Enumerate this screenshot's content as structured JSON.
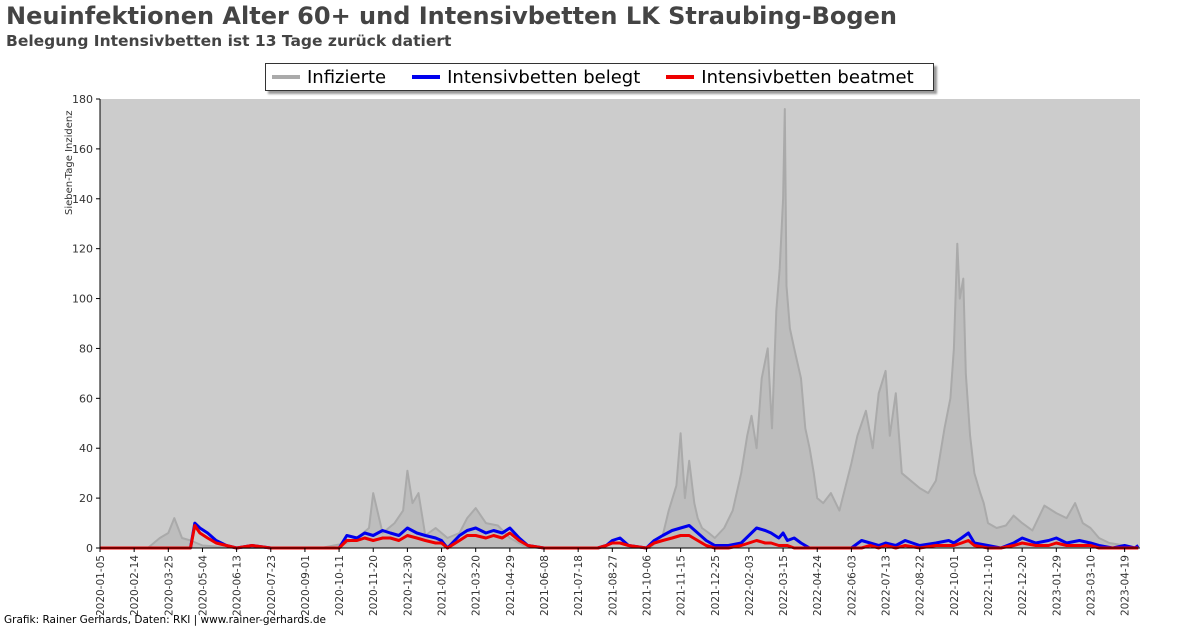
{
  "title": "Neuinfektionen Alter 60+ und Intensivbetten LK Straubing-Bogen",
  "subtitle": "Belegung Intensivbetten ist 13 Tage zurück datiert",
  "footer": "Grafik: Rainer Gerhards, Daten: RKI | www.rainer-gerhards.de",
  "colors": {
    "plot_bg": "#cccccc",
    "infizierte": "#aaaaaa",
    "belegt": "#0000ee",
    "beatmet": "#ee0000"
  },
  "legend": [
    {
      "label": "Infizierte",
      "color": "#aaaaaa"
    },
    {
      "label": "Intensivbetten belegt",
      "color": "#0000ee"
    },
    {
      "label": "Intensivbetten beatmet",
      "color": "#ee0000"
    }
  ],
  "chart_data": {
    "type": "line",
    "title": "Neuinfektionen Alter 60+ und Intensivbetten LK Straubing-Bogen",
    "subtitle": "Belegung Intensivbetten ist 13 Tage zurück datiert",
    "ylabel": "Sieben-Tage Inzidenz",
    "ylim": [
      0,
      180
    ],
    "yticks": [
      0,
      20,
      40,
      60,
      80,
      100,
      120,
      140,
      160,
      180
    ],
    "xlim": [
      "2020-01-05",
      "2023-05-07"
    ],
    "xticks": [
      "2020-01-05",
      "2020-02-14",
      "2020-03-25",
      "2020-05-04",
      "2020-06-13",
      "2020-07-23",
      "2020-09-01",
      "2020-10-11",
      "2020-11-20",
      "2020-12-30",
      "2021-02-08",
      "2021-03-20",
      "2021-04-29",
      "2021-06-08",
      "2021-07-18",
      "2021-08-27",
      "2021-10-06",
      "2021-11-15",
      "2021-12-25",
      "2022-02-03",
      "2022-03-15",
      "2022-04-24",
      "2022-06-03",
      "2022-07-13",
      "2022-08-22",
      "2022-10-01",
      "2022-11-10",
      "2022-12-20",
      "2023-01-29",
      "2023-03-10",
      "2023-04-19"
    ],
    "grid": false,
    "legend_position": "top-center",
    "series": [
      {
        "name": "Infizierte",
        "color": "#aaaaaa",
        "x": [
          "2020-01-05",
          "2020-03-01",
          "2020-03-15",
          "2020-03-25",
          "2020-04-01",
          "2020-04-10",
          "2020-04-20",
          "2020-05-04",
          "2020-06-13",
          "2020-08-15",
          "2020-09-20",
          "2020-10-20",
          "2020-11-05",
          "2020-11-15",
          "2020-11-20",
          "2020-12-01",
          "2020-12-15",
          "2020-12-25",
          "2020-12-30",
          "2021-01-05",
          "2021-01-12",
          "2021-01-20",
          "2021-02-01",
          "2021-02-15",
          "2021-03-01",
          "2021-03-10",
          "2021-03-20",
          "2021-04-01",
          "2021-04-15",
          "2021-04-29",
          "2021-05-15",
          "2021-06-01",
          "2021-06-20",
          "2021-08-01",
          "2021-08-27",
          "2021-09-20",
          "2021-10-10",
          "2021-10-25",
          "2021-11-01",
          "2021-11-10",
          "2021-11-15",
          "2021-11-20",
          "2021-11-25",
          "2021-12-01",
          "2021-12-05",
          "2021-12-10",
          "2021-12-18",
          "2021-12-25",
          "2022-01-05",
          "2022-01-15",
          "2022-01-25",
          "2022-02-01",
          "2022-02-06",
          "2022-02-12",
          "2022-02-18",
          "2022-02-25",
          "2022-03-02",
          "2022-03-07",
          "2022-03-11",
          "2022-03-15",
          "2022-03-17",
          "2022-03-19",
          "2022-03-23",
          "2022-03-28",
          "2022-04-05",
          "2022-04-10",
          "2022-04-15",
          "2022-04-20",
          "2022-04-24",
          "2022-05-01",
          "2022-05-10",
          "2022-05-20",
          "2022-06-03",
          "2022-06-10",
          "2022-06-20",
          "2022-06-28",
          "2022-07-05",
          "2022-07-13",
          "2022-07-18",
          "2022-07-25",
          "2022-08-01",
          "2022-08-08",
          "2022-08-22",
          "2022-09-01",
          "2022-09-10",
          "2022-09-20",
          "2022-09-27",
          "2022-10-01",
          "2022-10-05",
          "2022-10-08",
          "2022-10-12",
          "2022-10-15",
          "2022-10-20",
          "2022-10-25",
          "2022-11-01",
          "2022-11-05",
          "2022-11-10",
          "2022-11-20",
          "2022-12-01",
          "2022-12-10",
          "2022-12-20",
          "2023-01-01",
          "2023-01-15",
          "2023-01-29",
          "2023-02-10",
          "2023-02-20",
          "2023-03-01",
          "2023-03-10",
          "2023-03-20",
          "2023-04-01",
          "2023-04-19",
          "2023-05-05"
        ],
        "values": [
          0,
          0,
          4,
          6,
          12,
          4,
          3,
          1,
          0,
          0,
          0,
          2,
          5,
          8,
          22,
          6,
          10,
          15,
          31,
          18,
          22,
          5,
          8,
          4,
          6,
          12,
          16,
          10,
          9,
          4,
          1,
          0,
          0,
          0,
          0,
          0,
          0,
          5,
          15,
          25,
          46,
          20,
          35,
          18,
          12,
          8,
          6,
          4,
          8,
          15,
          30,
          45,
          53,
          40,
          68,
          80,
          48,
          95,
          112,
          140,
          176,
          105,
          88,
          80,
          68,
          48,
          40,
          30,
          20,
          18,
          22,
          15,
          34,
          45,
          55,
          40,
          62,
          71,
          45,
          62,
          30,
          28,
          24,
          22,
          27,
          48,
          60,
          80,
          122,
          100,
          108,
          70,
          45,
          30,
          22,
          18,
          10,
          8,
          9,
          13,
          10,
          7,
          17,
          14,
          12,
          18,
          10,
          8,
          4,
          2,
          1,
          0
        ]
      },
      {
        "name": "Intensivbetten belegt",
        "color": "#0000ee",
        "x": [
          "2020-01-05",
          "2020-04-20",
          "2020-04-25",
          "2020-05-01",
          "2020-05-10",
          "2020-05-20",
          "2020-06-01",
          "2020-06-13",
          "2020-07-01",
          "2020-07-23",
          "2020-09-01",
          "2020-10-11",
          "2020-10-20",
          "2020-11-01",
          "2020-11-10",
          "2020-11-20",
          "2020-12-01",
          "2020-12-10",
          "2020-12-20",
          "2020-12-30",
          "2021-01-10",
          "2021-01-20",
          "2021-02-01",
          "2021-02-08",
          "2021-02-15",
          "2021-03-01",
          "2021-03-10",
          "2021-03-20",
          "2021-04-01",
          "2021-04-10",
          "2021-04-20",
          "2021-04-29",
          "2021-05-10",
          "2021-05-20",
          "2021-06-08",
          "2021-07-18",
          "2021-08-10",
          "2021-08-20",
          "2021-08-27",
          "2021-09-05",
          "2021-09-15",
          "2021-10-06",
          "2021-10-15",
          "2021-10-25",
          "2021-11-05",
          "2021-11-15",
          "2021-11-25",
          "2021-12-05",
          "2021-12-15",
          "2021-12-25",
          "2022-01-10",
          "2022-01-25",
          "2022-02-03",
          "2022-02-12",
          "2022-02-22",
          "2022-03-01",
          "2022-03-10",
          "2022-03-15",
          "2022-03-20",
          "2022-03-28",
          "2022-04-05",
          "2022-04-15",
          "2022-04-24",
          "2022-05-15",
          "2022-06-03",
          "2022-06-15",
          "2022-06-25",
          "2022-07-05",
          "2022-07-13",
          "2022-07-25",
          "2022-08-05",
          "2022-08-22",
          "2022-09-10",
          "2022-09-25",
          "2022-10-01",
          "2022-10-10",
          "2022-10-18",
          "2022-10-25",
          "2022-11-10",
          "2022-11-25",
          "2022-12-10",
          "2022-12-20",
          "2023-01-05",
          "2023-01-20",
          "2023-01-29",
          "2023-02-10",
          "2023-02-25",
          "2023-03-10",
          "2023-03-20",
          "2023-04-05",
          "2023-04-19",
          "2023-05-01",
          "2023-05-05"
        ],
        "values": [
          0,
          0,
          10,
          8,
          6,
          3,
          1,
          0,
          1,
          0,
          0,
          0,
          5,
          4,
          6,
          5,
          7,
          6,
          5,
          8,
          6,
          5,
          4,
          3,
          0,
          5,
          7,
          8,
          6,
          7,
          6,
          8,
          4,
          1,
          0,
          0,
          0,
          1,
          3,
          4,
          1,
          0,
          3,
          5,
          7,
          8,
          9,
          6,
          3,
          1,
          1,
          2,
          5,
          8,
          7,
          6,
          4,
          6,
          3,
          4,
          2,
          0,
          0,
          0,
          0,
          3,
          2,
          1,
          2,
          1,
          3,
          1,
          2,
          3,
          2,
          4,
          6,
          2,
          1,
          0,
          2,
          4,
          2,
          3,
          4,
          2,
          3,
          2,
          1,
          0,
          1,
          0,
          1
        ]
      },
      {
        "name": "Intensivbetten beatmet",
        "color": "#ee0000",
        "x": [
          "2020-01-05",
          "2020-04-20",
          "2020-04-25",
          "2020-05-01",
          "2020-05-10",
          "2020-05-20",
          "2020-06-01",
          "2020-06-13",
          "2020-07-01",
          "2020-07-23",
          "2020-09-01",
          "2020-10-11",
          "2020-10-20",
          "2020-11-01",
          "2020-11-10",
          "2020-11-20",
          "2020-12-01",
          "2020-12-10",
          "2020-12-20",
          "2020-12-30",
          "2021-01-10",
          "2021-01-20",
          "2021-02-01",
          "2021-02-08",
          "2021-02-15",
          "2021-03-01",
          "2021-03-10",
          "2021-03-20",
          "2021-04-01",
          "2021-04-10",
          "2021-04-20",
          "2021-04-29",
          "2021-05-10",
          "2021-05-20",
          "2021-06-08",
          "2021-07-18",
          "2021-08-10",
          "2021-08-20",
          "2021-08-27",
          "2021-09-05",
          "2021-09-15",
          "2021-10-06",
          "2021-10-15",
          "2021-10-25",
          "2021-11-05",
          "2021-11-15",
          "2021-11-25",
          "2021-12-05",
          "2021-12-15",
          "2021-12-25",
          "2022-01-10",
          "2022-01-25",
          "2022-02-03",
          "2022-02-12",
          "2022-02-22",
          "2022-03-01",
          "2022-03-10",
          "2022-03-15",
          "2022-03-20",
          "2022-03-28",
          "2022-04-05",
          "2022-04-15",
          "2022-04-24",
          "2022-05-15",
          "2022-06-03",
          "2022-06-15",
          "2022-06-25",
          "2022-07-05",
          "2022-07-13",
          "2022-07-25",
          "2022-08-05",
          "2022-08-22",
          "2022-09-10",
          "2022-09-25",
          "2022-10-01",
          "2022-10-10",
          "2022-10-18",
          "2022-10-25",
          "2022-11-10",
          "2022-11-25",
          "2022-12-10",
          "2022-12-20",
          "2023-01-05",
          "2023-01-20",
          "2023-01-29",
          "2023-02-10",
          "2023-02-25",
          "2023-03-10",
          "2023-03-20",
          "2023-04-05",
          "2023-04-19",
          "2023-05-01",
          "2023-05-05"
        ],
        "values": [
          0,
          0,
          9,
          6,
          4,
          2,
          1,
          0,
          1,
          0,
          0,
          0,
          3,
          3,
          4,
          3,
          4,
          4,
          3,
          5,
          4,
          3,
          2,
          2,
          0,
          3,
          5,
          5,
          4,
          5,
          4,
          6,
          3,
          1,
          0,
          0,
          0,
          1,
          2,
          2,
          1,
          0,
          2,
          3,
          4,
          5,
          5,
          3,
          1,
          0,
          0,
          1,
          2,
          3,
          2,
          2,
          1,
          1,
          1,
          0,
          0,
          0,
          0,
          0,
          0,
          0,
          1,
          0,
          1,
          0,
          1,
          0,
          1,
          1,
          1,
          2,
          3,
          1,
          0,
          0,
          1,
          2,
          1,
          1,
          2,
          1,
          1,
          1,
          0,
          0,
          0,
          0,
          0
        ]
      }
    ]
  }
}
